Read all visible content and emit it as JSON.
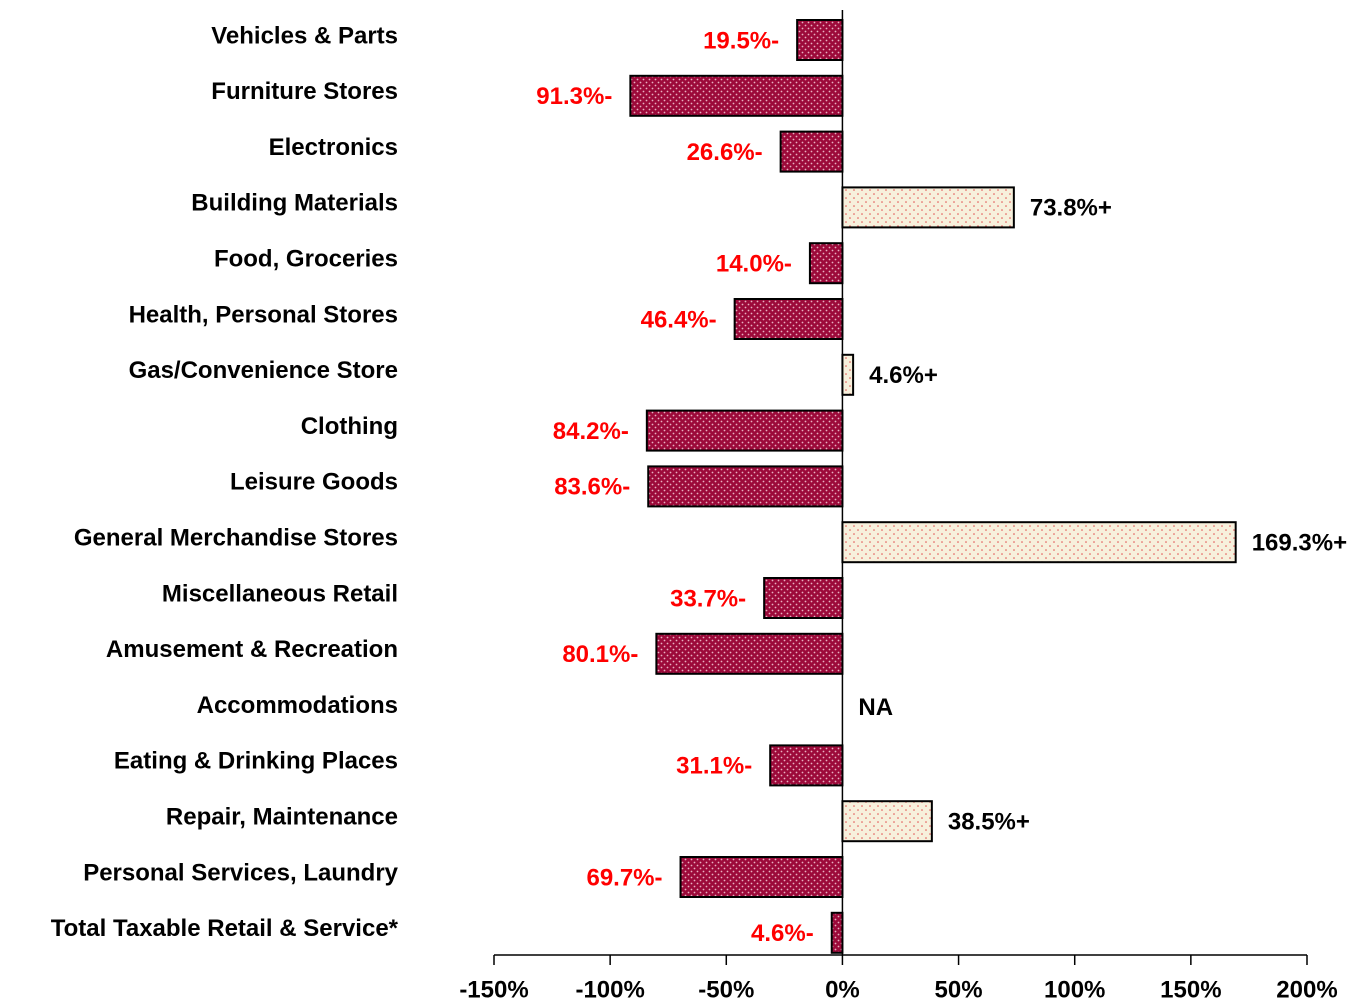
{
  "chart_data": {
    "type": "bar",
    "orientation": "horizontal",
    "categories": [
      "Vehicles & Parts",
      "Furniture Stores",
      "Electronics",
      "Building Materials",
      "Food, Groceries",
      "Health, Personal Stores",
      "Gas/Convenience Store",
      "Clothing",
      "Leisure Goods",
      "General Merchandise Stores",
      "Miscellaneous Retail",
      "Amusement & Recreation",
      "Accommodations",
      "Eating & Drinking Places",
      "Repair, Maintenance",
      "Personal Services, Laundry",
      "Total Taxable Retail & Service*"
    ],
    "values": [
      -19.5,
      -91.3,
      -26.6,
      73.8,
      -14.0,
      -46.4,
      4.6,
      -84.2,
      -83.6,
      169.3,
      -33.7,
      -80.1,
      null,
      -31.1,
      38.5,
      -69.7,
      -4.6
    ],
    "value_labels": [
      "19.5%-",
      "91.3%-",
      "26.6%-",
      "73.8%+",
      "14.0%-",
      "46.4%-",
      "4.6%+",
      "84.2%-",
      "83.6%-",
      "169.3%+",
      "33.7%-",
      "80.1%-",
      "NA",
      "31.1%-",
      "38.5%+",
      "69.7%-",
      "4.6%-"
    ],
    "negative_color": "#9c0a3a",
    "positive_color": "#f7f0dc",
    "negative_label_color": "#ff0000",
    "positive_label_color": "#000000",
    "xlim": [
      -150,
      200
    ],
    "xticks": [
      {
        "value": -150,
        "label": "-150%"
      },
      {
        "value": -100,
        "label": "-100%"
      },
      {
        "value": -50,
        "label": "-50%"
      },
      {
        "value": 0,
        "label": "0%"
      },
      {
        "value": 50,
        "label": "50%"
      },
      {
        "value": 100,
        "label": "100%"
      },
      {
        "value": 150,
        "label": "150%"
      },
      {
        "value": 200,
        "label": "200%"
      }
    ],
    "grid": false
  }
}
